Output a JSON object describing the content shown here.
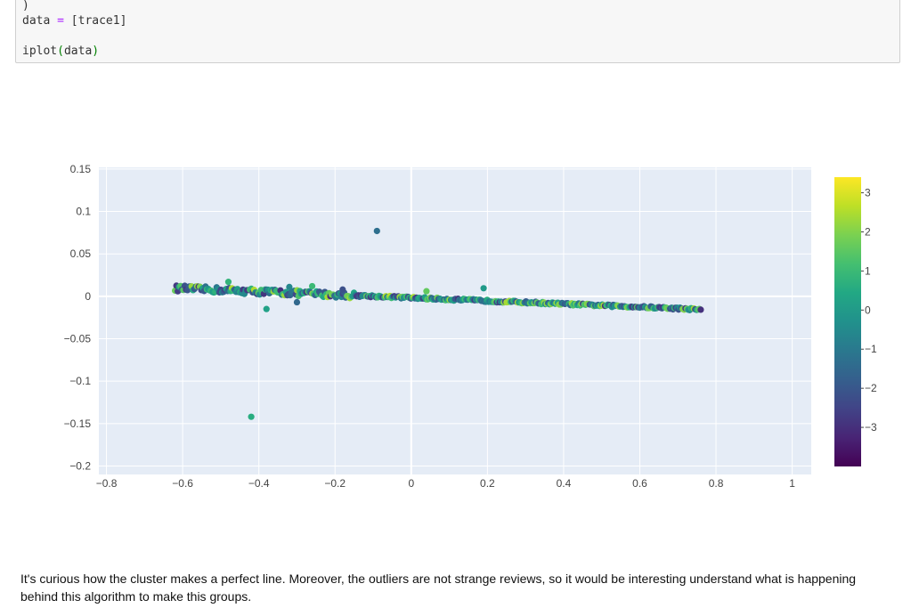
{
  "code_cell": {
    "line0": ")",
    "line1_var": "data",
    "line1_op": "=",
    "line1_rest": "[trace1]",
    "line2_func": "iplot",
    "line2_open": "(",
    "line2_arg": "data",
    "line2_close": ")"
  },
  "chart_data": {
    "type": "scatter",
    "xlim": [
      -0.82,
      1.05
    ],
    "ylim": [
      -0.21,
      0.152
    ],
    "x_ticks": [
      -0.8,
      -0.6,
      -0.4,
      -0.2,
      0,
      0.2,
      0.4,
      0.6,
      0.8,
      1
    ],
    "x_tick_labels": [
      "−0.8",
      "−0.6",
      "−0.4",
      "−0.2",
      "0",
      "0.2",
      "0.4",
      "0.6",
      "0.8",
      "1"
    ],
    "y_ticks": [
      0.15,
      0.1,
      0.05,
      0,
      -0.05,
      -0.1,
      -0.15,
      -0.2
    ],
    "y_tick_labels": [
      "0.15",
      "0.1",
      "0.05",
      "0",
      "−0.05",
      "−0.1",
      "−0.15",
      "−0.2"
    ],
    "grid": true,
    "colorscale": "viridis",
    "color_range": [
      -4,
      3.4
    ],
    "colorbar_ticks": [
      3,
      2,
      1,
      0,
      -1,
      -2,
      -3
    ],
    "colorbar_tick_labels": [
      "3",
      "2",
      "1",
      "0",
      "−1",
      "−2",
      "−3"
    ],
    "main_line": {
      "x_start": -0.62,
      "x_end": 0.76,
      "y_start": 0.0095,
      "y_end": -0.0155
    },
    "outliers": [
      {
        "x": -0.09,
        "y": 0.077,
        "c": -1.3
      },
      {
        "x": -0.42,
        "y": -0.142,
        "c": 0.6
      },
      {
        "x": -0.38,
        "y": -0.015,
        "c": 0.2
      },
      {
        "x": 0.19,
        "y": 0.0095,
        "c": 0.0
      },
      {
        "x": -0.48,
        "y": 0.017,
        "c": 0.8
      },
      {
        "x": -0.3,
        "y": -0.007,
        "c": -1.5
      },
      {
        "x": -0.32,
        "y": 0.011,
        "c": -0.6
      },
      {
        "x": 0.04,
        "y": 0.006,
        "c": 1.6
      },
      {
        "x": -0.18,
        "y": 0.008,
        "c": -2.2
      },
      {
        "x": -0.26,
        "y": 0.012,
        "c": 1.0
      }
    ]
  },
  "note": {
    "text": "It's curious how the cluster makes a perfect line. Moreover, the outliers are not strange reviews, so it would be interesting understand what is happening behind this algorithm to make this groups."
  }
}
